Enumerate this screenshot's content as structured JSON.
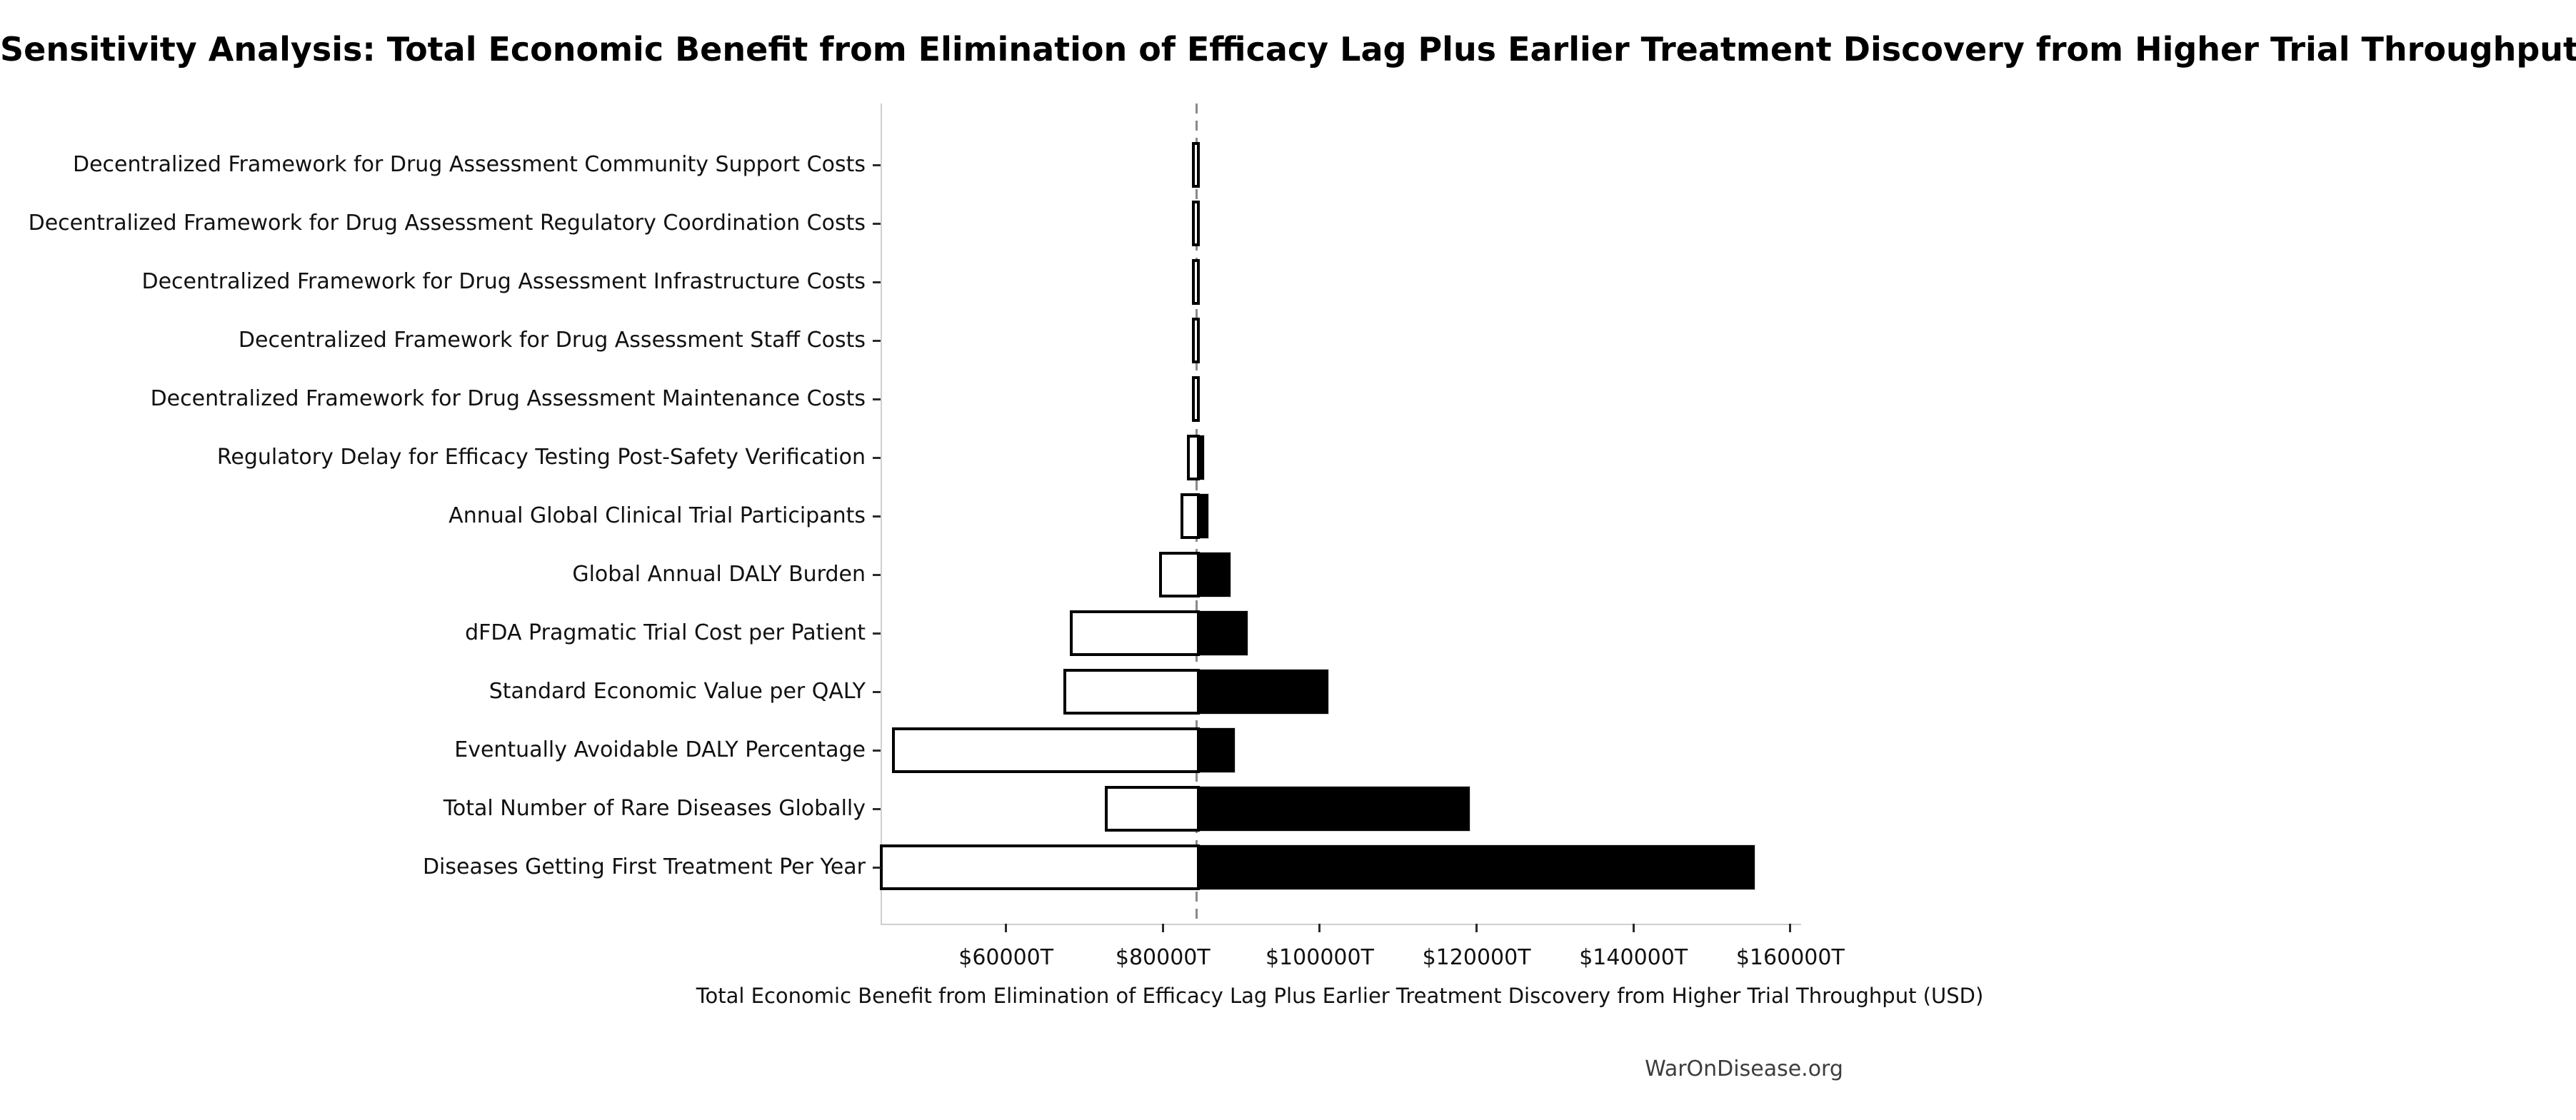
{
  "figure": {
    "title": "Sensitivity Analysis: Total Economic Benefit from Elimination of Efficacy Lag Plus Earlier Treatment Discovery from Higher Trial Throughput",
    "watermark": "WarOnDisease.org"
  },
  "chart_data": {
    "type": "bar",
    "variant": "tornado-sensitivity",
    "orientation": "horizontal",
    "title": "Sensitivity Analysis: Total Economic Benefit from Elimination of Efficacy Lag Plus Earlier Treatment Discovery from Higher Trial Throughput",
    "xlabel": "Total Economic Benefit from Elimination of Efficacy Lag Plus Earlier Treatment Discovery from Higher Trial Throughput (USD)",
    "ylabel": "",
    "value_unit": "$T (trillions USD)",
    "base_value": 84300,
    "xlim": [
      44000,
      161200
    ],
    "x_tick_values": [
      60000,
      80000,
      100000,
      120000,
      140000,
      160000
    ],
    "x_tick_labels": [
      "$60000T",
      "$80000T",
      "$100000T",
      "$120000T",
      "$140000T",
      "$160000T"
    ],
    "grid": false,
    "baseline_style": "dashed-vertical-at-base-value",
    "legend": null,
    "colors": {
      "low_segment_fill": "#ffffff",
      "low_segment_edge": "#000000",
      "high_segment_fill": "#000000",
      "spine": "#cfcfcf",
      "baseline": "#8a8a8a",
      "text": "#000000",
      "watermark": "#3d3d3d",
      "background": "#ffffff"
    },
    "bars": [
      {
        "label": "Decentralized Framework for Drug Assessment Community Support Costs",
        "low": 84050,
        "high": 84550
      },
      {
        "label": "Decentralized Framework for Drug Assessment Regulatory Coordination Costs",
        "low": 84050,
        "high": 84550
      },
      {
        "label": "Decentralized Framework for Drug Assessment Infrastructure Costs",
        "low": 84050,
        "high": 84550
      },
      {
        "label": "Decentralized Framework for Drug Assessment Staff Costs",
        "low": 84050,
        "high": 84550
      },
      {
        "label": "Decentralized Framework for Drug Assessment Maintenance Costs",
        "low": 84050,
        "high": 84550
      },
      {
        "label": "Regulatory Delay for Efficacy Testing Post-Safety Verification",
        "low": 83400,
        "high": 85300
      },
      {
        "label": "Annual Global Clinical Trial Participants",
        "low": 82600,
        "high": 85900
      },
      {
        "label": "Global Annual DALY Burden",
        "low": 79900,
        "high": 88700
      },
      {
        "label": "dFDA Pragmatic Trial Cost per Patient",
        "low": 68500,
        "high": 90900
      },
      {
        "label": "Standard Economic Value per QALY",
        "low": 67700,
        "high": 101200
      },
      {
        "label": "Eventually Avoidable DALY Percentage",
        "low": 45800,
        "high": 89300
      },
      {
        "label": "Total Number of Rare Diseases Globally",
        "low": 73000,
        "high": 119200
      },
      {
        "label": "Diseases Getting First Treatment Per Year",
        "low": 44300,
        "high": 155600
      }
    ]
  }
}
